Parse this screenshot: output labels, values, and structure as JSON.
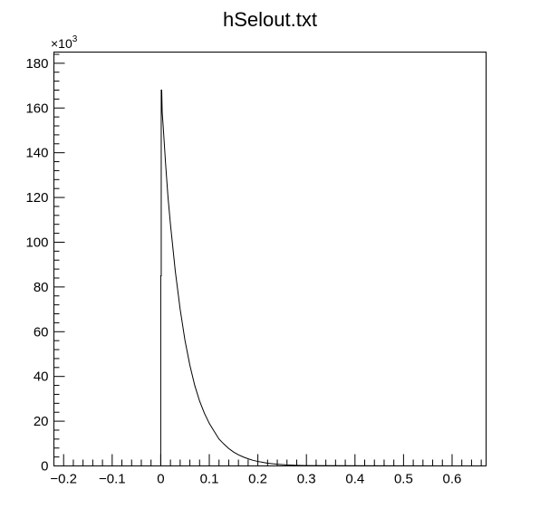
{
  "chart_data": {
    "type": "line",
    "title": "hSelout.txt",
    "xlabel": "",
    "ylabel": "",
    "xlim": [
      -0.22,
      0.67
    ],
    "ylim": [
      0,
      185000
    ],
    "y_multiplier_label": "×10",
    "y_multiplier_exponent": "3",
    "x_ticks": [
      {
        "value": -0.2,
        "label": "−0.2"
      },
      {
        "value": -0.1,
        "label": "−0.1"
      },
      {
        "value": 0,
        "label": "0"
      },
      {
        "value": 0.1,
        "label": "0.1"
      },
      {
        "value": 0.2,
        "label": "0.2"
      },
      {
        "value": 0.3,
        "label": "0.3"
      },
      {
        "value": 0.4,
        "label": "0.4"
      },
      {
        "value": 0.5,
        "label": "0.5"
      },
      {
        "value": 0.6,
        "label": "0.6"
      }
    ],
    "y_ticks": [
      {
        "value": 0,
        "label": "0"
      },
      {
        "value": 20000,
        "label": "20"
      },
      {
        "value": 40000,
        "label": "40"
      },
      {
        "value": 60000,
        "label": "60"
      },
      {
        "value": 80000,
        "label": "80"
      },
      {
        "value": 100000,
        "label": "100"
      },
      {
        "value": 120000,
        "label": "120"
      },
      {
        "value": 140000,
        "label": "140"
      },
      {
        "value": 160000,
        "label": "160"
      },
      {
        "value": 180000,
        "label": "180"
      }
    ],
    "grid": false,
    "legend": "none",
    "line_color": "#000000",
    "series": [
      {
        "x": [
          -0.22,
          0.0,
          0.0,
          0.001,
          0.001,
          0.002,
          0.003,
          0.005,
          0.01,
          0.015,
          0.02,
          0.03,
          0.04,
          0.05,
          0.06,
          0.07,
          0.08,
          0.09,
          0.1,
          0.11,
          0.12,
          0.13,
          0.14,
          0.15,
          0.16,
          0.17,
          0.18,
          0.19,
          0.2,
          0.21,
          0.22,
          0.23,
          0.24,
          0.25,
          0.26,
          0.27,
          0.28,
          0.3,
          0.67
        ],
        "y": [
          0,
          0,
          85000,
          85000,
          168000,
          168000,
          158000,
          152000,
          135000,
          120000,
          108000,
          87000,
          70000,
          56000,
          45000,
          36000,
          29000,
          23500,
          19000,
          15500,
          12000,
          9800,
          7800,
          6200,
          5000,
          4000,
          3200,
          2500,
          2000,
          1600,
          1200,
          950,
          750,
          600,
          450,
          350,
          250,
          150,
          0
        ]
      }
    ]
  }
}
